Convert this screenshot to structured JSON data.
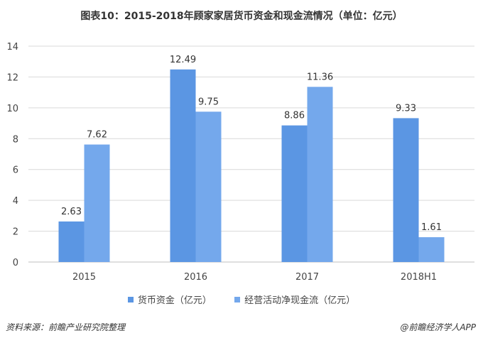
{
  "title": "图表10：2015-2018年顾家家居货币资金和现金流情况（单位：亿元）",
  "source": "资料来源：前瞻产业研究院整理",
  "watermark": "@前瞻经济学人APP",
  "colors": {
    "series1": "#5b96e3",
    "series2": "#74a8ec",
    "grid": "#d9d9d9",
    "axis": "#bfbfbf"
  },
  "chart_data": {
    "type": "bar",
    "categories": [
      "2015",
      "2016",
      "2017",
      "2018H1"
    ],
    "series": [
      {
        "name": "货币资金（亿元）",
        "values": [
          2.63,
          12.49,
          8.86,
          9.33
        ]
      },
      {
        "name": "经营活动净现金流（亿元）",
        "values": [
          7.62,
          9.75,
          11.36,
          1.61
        ]
      }
    ],
    "ylim": [
      0,
      14
    ],
    "yticks": [
      "0",
      "2",
      "4",
      "6",
      "8",
      "10",
      "12",
      "14"
    ],
    "grid": true,
    "legend": "bottom"
  }
}
